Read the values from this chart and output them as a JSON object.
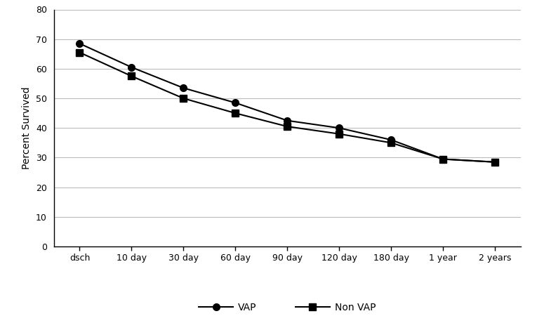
{
  "x_labels": [
    "dsch",
    "10 day",
    "30 day",
    "60 day",
    "90 day",
    "120 day",
    "180 day",
    "1 year",
    "2 years"
  ],
  "vap_values": [
    68.5,
    60.5,
    53.5,
    48.5,
    42.5,
    40.0,
    36.0,
    29.5,
    28.5
  ],
  "nonvap_values": [
    65.5,
    57.5,
    50.0,
    45.0,
    40.5,
    38.0,
    35.0,
    29.5,
    28.5
  ],
  "vap_label": "VAP",
  "nonvap_label": "Non VAP",
  "ylabel": "Percent Survived",
  "ylim": [
    0,
    80
  ],
  "yticks": [
    0,
    10,
    20,
    30,
    40,
    50,
    60,
    70,
    80
  ],
  "line_color": "#000000",
  "marker_circle": "o",
  "marker_square": "s",
  "marker_size": 7,
  "line_width": 1.5,
  "background_color": "#ffffff",
  "grid_color": "#bbbbbb"
}
